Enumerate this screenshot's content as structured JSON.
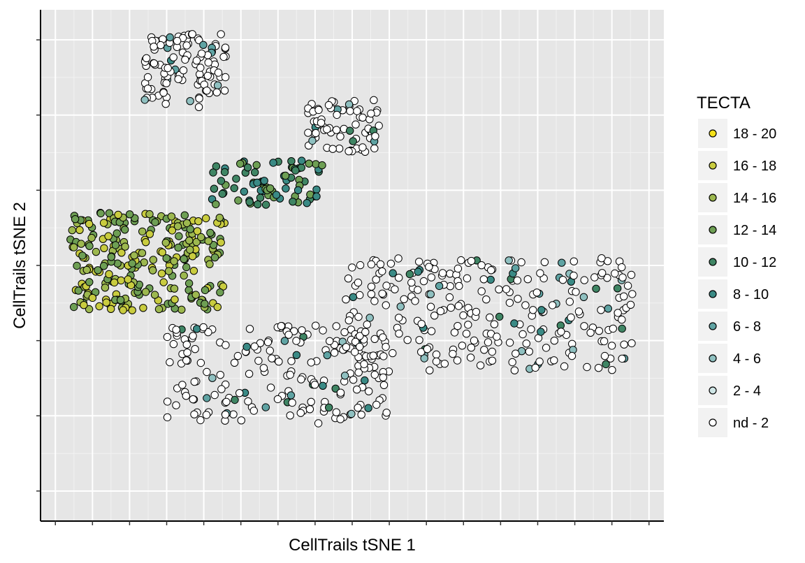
{
  "chart_data": {
    "type": "scatter",
    "title": "",
    "xlabel": "CellTrails tSNE 1",
    "ylabel": "CellTrails tSNE 2",
    "xlim": [
      -42,
      42
    ],
    "ylim": [
      -34,
      34
    ],
    "x_ticks": [
      -40,
      -35,
      -30,
      -25,
      -20,
      -15,
      -10,
      -5,
      0,
      5,
      10,
      15,
      20,
      25,
      30,
      35,
      40
    ],
    "y_ticks": [
      -30,
      -20,
      -10,
      0,
      10,
      20,
      30
    ],
    "x_tick_labels_shown": false,
    "y_tick_labels_shown": false,
    "grid": true,
    "legend": {
      "title": "TECTA",
      "position": "right",
      "entries": [
        {
          "label": "18 - 20",
          "color": "#F4E11A"
        },
        {
          "label": "16 - 18",
          "color": "#C9CC3F"
        },
        {
          "label": "14 - 16",
          "color": "#9DB84F"
        },
        {
          "label": "12 - 14",
          "color": "#6E9F54"
        },
        {
          "label": "10 - 12",
          "color": "#3F8564"
        },
        {
          "label": "8 - 10",
          "color": "#3A8A85"
        },
        {
          "label": "6 - 8",
          "color": "#5FA3A3"
        },
        {
          "label": "4 - 6",
          "color": "#8FC0C0"
        },
        {
          "label": "2 - 4",
          "color": "#CFE6E6"
        },
        {
          "label": "nd - 2",
          "color": "#FFFFFF"
        }
      ]
    },
    "clusters": [
      {
        "region": "top-left cluster",
        "x": [
          -28,
          -17
        ],
        "y": [
          21,
          31
        ],
        "mostly": "nd - 2",
        "count": 110
      },
      {
        "region": "top-right cluster",
        "x": [
          -6,
          4
        ],
        "y": [
          15,
          22
        ],
        "mostly": "nd - 2",
        "count": 70
      },
      {
        "region": "left band",
        "x": [
          -38,
          -17
        ],
        "y": [
          -6,
          7
        ],
        "mostly": "14 - 16",
        "count": 260
      },
      {
        "region": "middle bridge",
        "x": [
          -19,
          -4
        ],
        "y": [
          8,
          14
        ],
        "mostly": "10 - 12",
        "count": 80
      },
      {
        "region": "bottom tail",
        "x": [
          -25,
          5
        ],
        "y": [
          -21,
          -8
        ],
        "mostly": "nd - 2",
        "count": 200
      },
      {
        "region": "bottom-right cluster",
        "x": [
          -1,
          38
        ],
        "y": [
          -14,
          1
        ],
        "mostly": "nd - 2",
        "count": 280
      }
    ]
  }
}
